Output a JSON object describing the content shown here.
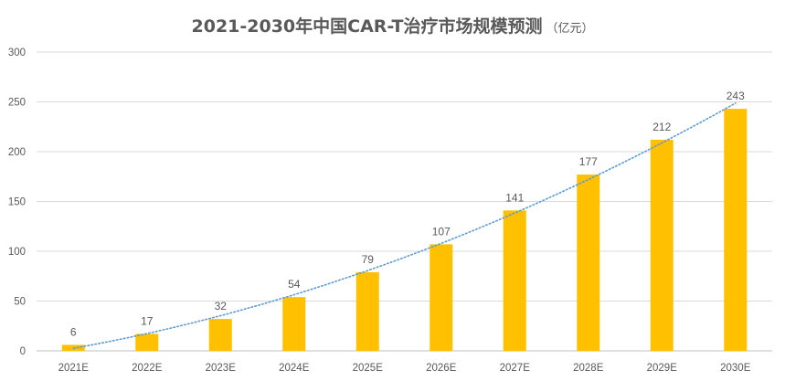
{
  "chart_data": {
    "type": "bar",
    "title": "2021-2030年中国CAR-T治疗市场规模预测",
    "unit": "（亿元）",
    "categories": [
      "2021E",
      "2022E",
      "2023E",
      "2024E",
      "2025E",
      "2026E",
      "2027E",
      "2028E",
      "2029E",
      "2030E"
    ],
    "values": [
      6,
      17,
      32,
      54,
      79,
      107,
      141,
      177,
      212,
      243
    ],
    "ylim": [
      0,
      300
    ],
    "yticks": [
      0,
      50,
      100,
      150,
      200,
      250,
      300
    ],
    "grid": true,
    "data_labels": true,
    "trendline": "polynomial",
    "bar_color": "#FFC000",
    "trendline_color": "#5B9BD5",
    "grid_color": "#D9D9D9",
    "text_color": "#595959"
  }
}
